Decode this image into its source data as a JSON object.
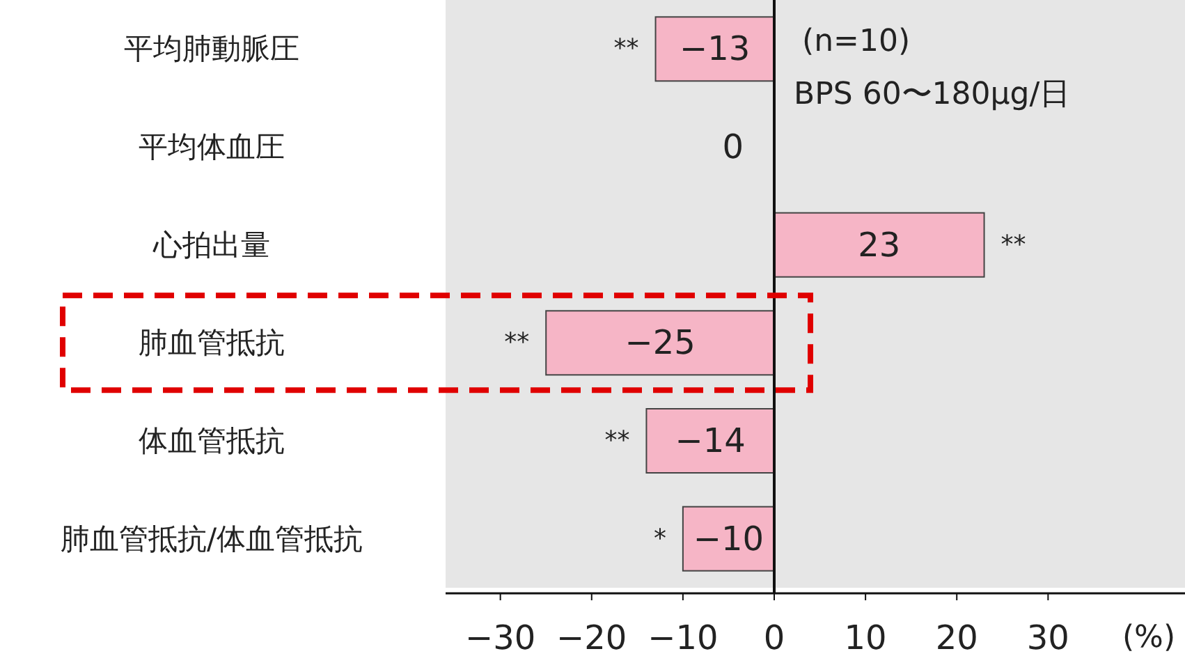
{
  "chart_data": {
    "type": "bar",
    "xlabel": "(%)",
    "categories": [
      "平均肺動脈圧",
      "平均体血圧",
      "心拍出量",
      "肺血管抵抗",
      "体血管抵抗",
      "肺血管抵抗/体血管抵抗"
    ],
    "values": [
      -13,
      0,
      23,
      -25,
      -14,
      -10
    ],
    "value_labels": [
      "−13",
      "0",
      "23",
      "−25",
      "−14",
      "−10"
    ],
    "color": "#f6b5c6",
    "xlim": [
      -36,
      45
    ],
    "xticks": [
      {
        "value": -30,
        "label": "−30"
      },
      {
        "value": -20,
        "label": "−20"
      },
      {
        "value": -10,
        "label": "−10"
      },
      0,
      10,
      20,
      30
    ],
    "annotations": [
      {
        "text": "**",
        "x": -13,
        "y": "平均肺動脈圧"
      },
      {
        "text": "**",
        "x": 23,
        "y": "心拍出量"
      },
      {
        "text": "**",
        "x": -25,
        "y": "肺血管抵抗"
      },
      {
        "text": "**",
        "x": -14,
        "y": "体血管抵抗"
      },
      {
        "text": "*",
        "x": -10,
        "y": "肺血管抵抗/体血管抵抗"
      },
      "(n=10)",
      "BPS 60〜180μg/日"
    ],
    "orientation": "horizontal"
  }
}
